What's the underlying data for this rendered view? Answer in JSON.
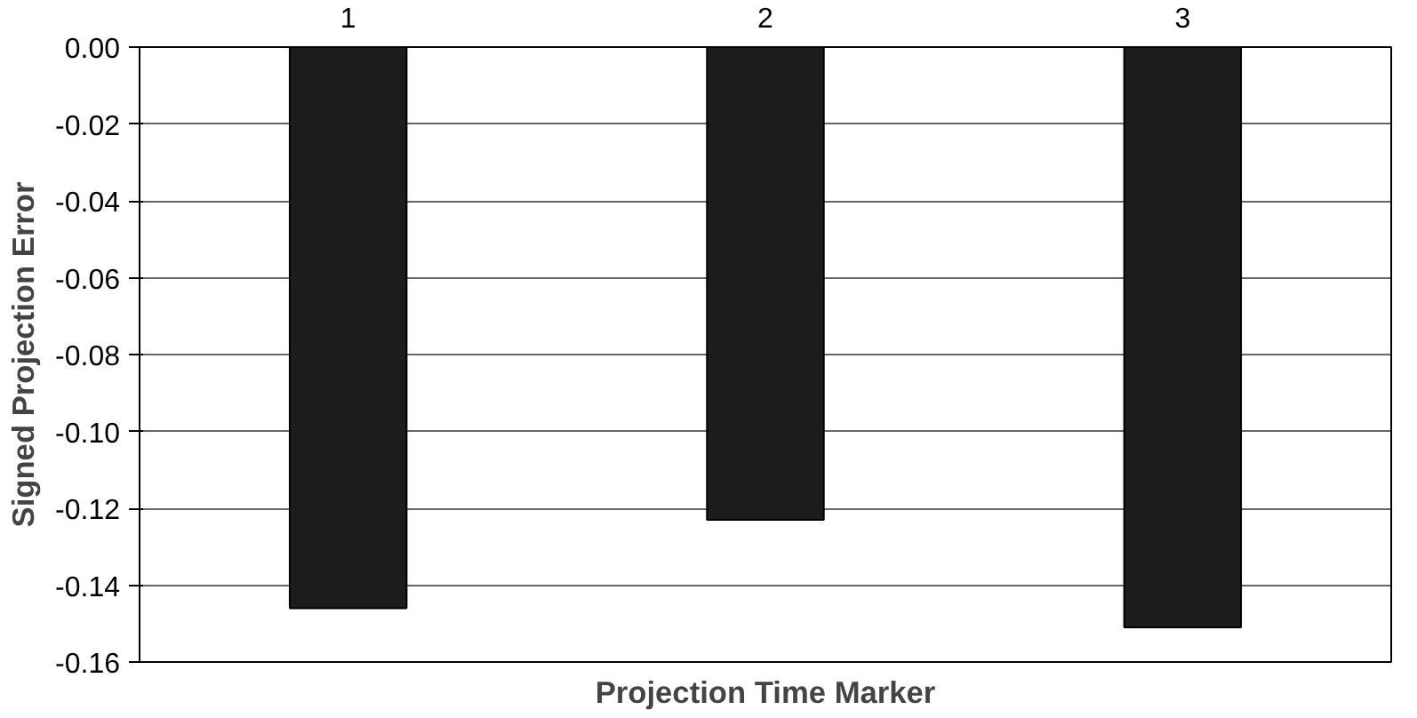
{
  "chart_data": {
    "type": "bar",
    "xlabel": "Projection Time Marker",
    "ylabel": "Signed Projection Error",
    "categories": [
      "1",
      "2",
      "3"
    ],
    "values": [
      -0.146,
      -0.123,
      -0.151
    ],
    "color": "#1c1c1c",
    "ylim": [
      -0.16,
      0
    ],
    "yticks": [
      {
        "value": 0,
        "label": "0.00"
      },
      {
        "value": -0.02,
        "label": "-0.02"
      },
      {
        "value": -0.04,
        "label": "-0.04"
      },
      {
        "value": -0.06,
        "label": "-0.06"
      },
      {
        "value": -0.08,
        "label": "-0.08"
      },
      {
        "value": -0.1,
        "label": "-0.10"
      },
      {
        "value": -0.12,
        "label": "-0.12"
      },
      {
        "value": -0.14,
        "label": "-0.14"
      },
      {
        "value": -0.16,
        "label": "-0.16"
      }
    ],
    "grid": "y"
  }
}
